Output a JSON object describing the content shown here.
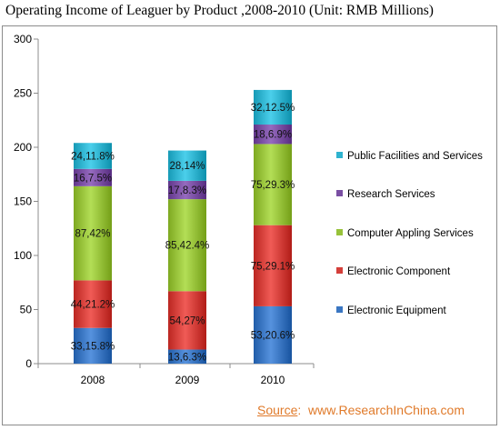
{
  "title": "Operating Income of Leaguer by Product ,2008-2010 (Unit: RMB Millions)",
  "source": {
    "label": "Source",
    "separator": ":",
    "site": "www.ResearchInChina.com"
  },
  "colors": {
    "Electronic Equipment": "#3a76c2",
    "Electronic Component": "#d43f3a",
    "Computer Appling Services": "#97c23a",
    "Research Services": "#7a4fa3",
    "Public Facilities and Services": "#2fb3cf"
  },
  "chart_data": {
    "type": "bar",
    "stacked": true,
    "categories": [
      "2008",
      "2009",
      "2010"
    ],
    "ylim": [
      0,
      300
    ],
    "yticks": [
      0,
      50,
      100,
      150,
      200,
      250,
      300
    ],
    "grid": false,
    "legend_position": "right",
    "series": [
      {
        "name": "Electronic Equipment",
        "values": [
          33,
          13,
          53
        ],
        "labels": [
          "33,15.8%",
          "13,6.3%",
          "53,20.6%"
        ]
      },
      {
        "name": "Electronic Component",
        "values": [
          44,
          54,
          75
        ],
        "labels": [
          "44,21.2%",
          "54,27%",
          "75,29.1%"
        ]
      },
      {
        "name": "Computer Appling Services",
        "values": [
          87,
          85,
          75
        ],
        "labels": [
          "87,42%",
          "85,42.4%",
          "75,29.3%"
        ]
      },
      {
        "name": "Research Services",
        "values": [
          16,
          17,
          18
        ],
        "labels": [
          "16,7.5%",
          "17,8.3%",
          "18,6.9%"
        ]
      },
      {
        "name": "Public Facilities and Services",
        "values": [
          24,
          28,
          32
        ],
        "labels": [
          "24,11.8%",
          "28,14%",
          "32,12.5%"
        ]
      }
    ],
    "legend_order": [
      "Public Facilities and Services",
      "Research Services",
      "Computer Appling Services",
      "Electronic Component",
      "Electronic Equipment"
    ]
  }
}
